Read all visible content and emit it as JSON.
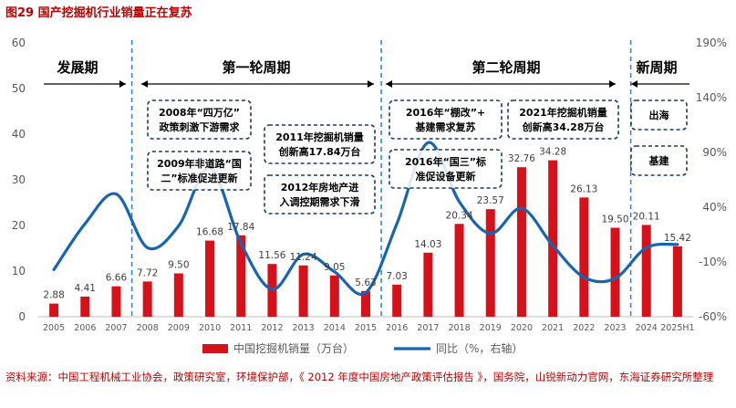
{
  "figure": {
    "title": "图29  国产挖掘机行业销量正在复苏",
    "source": "资料来源：中国工程机械工业协会，政策研究室，环境保护部，《 2012 年度中国房地产政策评估报告 》，国务院，山锐新动力官网，东海证券研究所整理"
  },
  "colors": {
    "bar": "#d7111a",
    "line": "#1565b0",
    "title": "#c00000",
    "divider": "#2f7bd6",
    "box_border": "#1f3a5f",
    "axis_text": "#595959"
  },
  "chart_data": {
    "type": "bar",
    "categories": [
      "2005",
      "2006",
      "2007",
      "2008",
      "2009",
      "2010",
      "2011",
      "2012",
      "2013",
      "2014",
      "2015",
      "2016",
      "2017",
      "2018",
      "2019",
      "2020",
      "2021",
      "2022",
      "2023",
      "2024",
      "2025H1"
    ],
    "series": [
      {
        "name": "中国挖掘机销量（万台）",
        "type": "bar",
        "axis": "left",
        "values": [
          2.88,
          4.41,
          6.66,
          7.72,
          9.5,
          16.68,
          17.84,
          11.56,
          11.24,
          9.05,
          5.63,
          7.03,
          14.03,
          20.34,
          23.57,
          32.76,
          34.28,
          26.13,
          19.5,
          20.11,
          15.42
        ],
        "labels": [
          "2.88",
          "4.41",
          "6.66",
          "7.72",
          "9.50",
          "16.68",
          "17.84",
          "11.56",
          "11.24",
          "9.05",
          "5.63",
          "7.03",
          "14.03",
          "20.34",
          "23.57",
          "32.76",
          "34.28",
          "26.13",
          "19.50",
          "20.11",
          "15.42"
        ]
      },
      {
        "name": "同比（%，右轴）",
        "type": "line",
        "axis": "right",
        "values": [
          -17,
          25,
          52,
          3,
          23,
          76,
          7,
          -35,
          -3,
          -19,
          -38,
          25,
          99,
          45,
          16,
          39,
          5,
          -24,
          -25,
          3,
          6
        ]
      }
    ],
    "y_left": {
      "min": 0,
      "max": 60,
      "ticks": [
        "0",
        "10",
        "20",
        "30",
        "40",
        "50",
        "60"
      ]
    },
    "y_right": {
      "min": -60,
      "max": 190,
      "ticks": [
        "-60%",
        "-10%",
        "40%",
        "90%",
        "140%",
        "190%"
      ]
    },
    "grid": false,
    "legend_position": "bottom",
    "periods": [
      {
        "label": "发展期"
      },
      {
        "label": "第一轮周期"
      },
      {
        "label": "第二轮周期"
      },
      {
        "label": "新周期"
      }
    ],
    "annotations": [
      {
        "lines": [
          "2008年“四万亿”",
          "政策刺激下游需求"
        ]
      },
      {
        "lines": [
          "2009年非道路“国",
          "二”标准促进更新"
        ]
      },
      {
        "lines": [
          "2011年挖掘机销量",
          "创新高17.84万台"
        ]
      },
      {
        "lines": [
          "2012年房地产进",
          "入调控期需求下滑"
        ]
      },
      {
        "lines": [
          "2016年“棚改”+",
          "基建需求复苏"
        ]
      },
      {
        "lines": [
          "2016年“国三”标",
          "准促设备更新"
        ]
      },
      {
        "lines": [
          "2021年挖掘机销量",
          "创新高34.28万台"
        ]
      },
      {
        "lines": [
          "出海"
        ]
      },
      {
        "lines": [
          "基建"
        ]
      }
    ]
  }
}
